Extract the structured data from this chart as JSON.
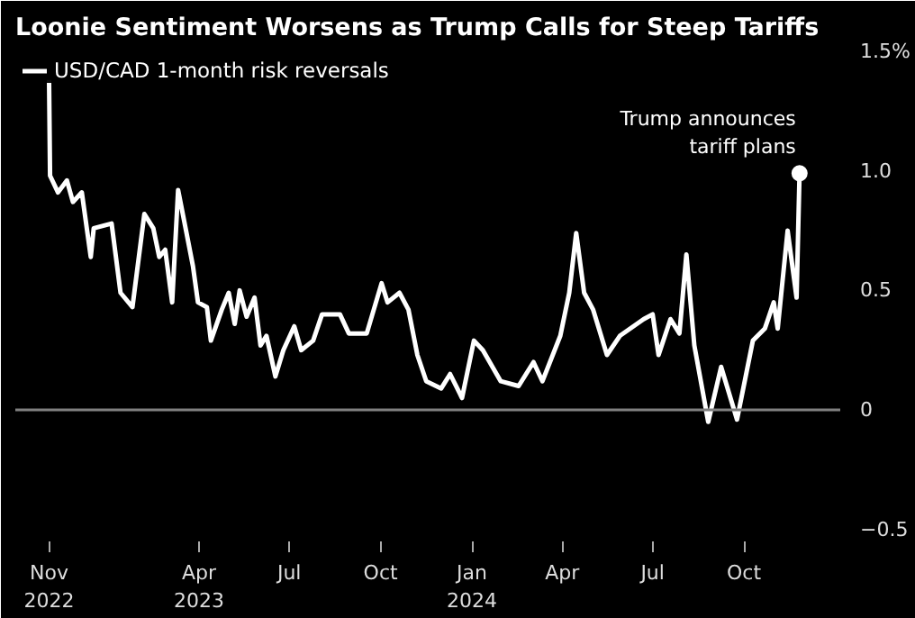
{
  "chart_data": {
    "type": "line",
    "title": "Loonie Sentiment Worsens as Trump Calls for Steep Tariffs",
    "x": [
      "2022-11-01",
      "2022-11-02",
      "2022-11-10",
      "2022-11-19",
      "2022-11-25",
      "2022-12-04",
      "2022-12-07",
      "2022-12-13",
      "2022-12-16",
      "2023-01-03",
      "2023-01-12",
      "2023-01-24",
      "2023-02-05",
      "2023-02-14",
      "2023-02-20",
      "2023-02-26",
      "2023-03-05",
      "2023-03-11",
      "2023-03-19",
      "2023-03-26",
      "2023-03-31",
      "2023-04-09",
      "2023-04-13",
      "2023-04-24",
      "2023-05-01",
      "2023-05-07",
      "2023-05-12",
      "2023-05-19",
      "2023-05-27",
      "2023-06-02",
      "2023-06-08",
      "2023-06-17",
      "2023-06-25",
      "2023-07-06",
      "2023-07-13",
      "2023-07-25",
      "2023-08-03",
      "2023-08-21",
      "2023-08-30",
      "2023-09-17",
      "2023-10-02",
      "2023-10-08",
      "2023-10-20",
      "2023-10-29",
      "2023-11-07",
      "2023-11-16",
      "2023-12-01",
      "2023-12-10",
      "2023-12-22",
      "2024-01-03",
      "2024-01-12",
      "2024-01-30",
      "2024-02-17",
      "2024-03-03",
      "2024-03-12",
      "2024-03-30",
      "2024-04-08",
      "2024-04-15",
      "2024-04-23",
      "2024-05-02",
      "2024-05-16",
      "2024-05-29",
      "2024-06-22",
      "2024-07-01",
      "2024-07-07",
      "2024-07-19",
      "2024-07-28",
      "2024-08-04",
      "2024-08-12",
      "2024-08-26",
      "2024-09-08",
      "2024-09-24",
      "2024-10-10",
      "2024-10-22",
      "2024-10-31",
      "2024-11-04",
      "2024-11-14",
      "2024-11-23",
      "2024-11-26"
    ],
    "series": [
      {
        "name": "USD/CAD 1-month risk reversals",
        "color": "#ffffff",
        "values": [
          1.38,
          0.98,
          0.91,
          0.96,
          0.87,
          0.91,
          0.82,
          0.64,
          0.76,
          0.78,
          0.49,
          0.43,
          0.82,
          0.76,
          0.64,
          0.67,
          0.45,
          0.92,
          0.75,
          0.6,
          0.45,
          0.43,
          0.29,
          0.42,
          0.49,
          0.36,
          0.5,
          0.39,
          0.47,
          0.27,
          0.31,
          0.14,
          0.25,
          0.35,
          0.25,
          0.29,
          0.4,
          0.4,
          0.32,
          0.32,
          0.53,
          0.45,
          0.49,
          0.42,
          0.23,
          0.12,
          0.09,
          0.15,
          0.05,
          0.29,
          0.25,
          0.12,
          0.1,
          0.2,
          0.12,
          0.31,
          0.49,
          0.74,
          0.49,
          0.42,
          0.23,
          0.31,
          0.38,
          0.4,
          0.23,
          0.38,
          0.32,
          0.65,
          0.27,
          -0.05,
          0.18,
          -0.04,
          0.29,
          0.34,
          0.45,
          0.34,
          0.75,
          0.47,
          0.99
        ]
      }
    ],
    "xlim": [
      "2022-09-28",
      "2025-01-06"
    ],
    "xticks": [
      {
        "value": "2022-11-01",
        "label": "Nov\n2022"
      },
      {
        "value": "2023-04-01",
        "label": "Apr\n2023"
      },
      {
        "value": "2023-07-01",
        "label": "Jul"
      },
      {
        "value": "2023-10-01",
        "label": "Oct"
      },
      {
        "value": "2024-01-01",
        "label": "Jan\n2024"
      },
      {
        "value": "2024-04-01",
        "label": "Apr"
      },
      {
        "value": "2024-07-01",
        "label": "Jul"
      },
      {
        "value": "2024-10-01",
        "label": "Oct"
      }
    ],
    "ylim": [
      -0.55,
      1.5
    ],
    "yticks": [
      -0.5,
      0,
      0.5,
      {
        "value": 1.0,
        "label": "1.0"
      },
      {
        "value": 1.5,
        "label": "1.5%"
      }
    ],
    "ref_lines": [
      {
        "axis": "y",
        "value": 0,
        "color": "#808080"
      }
    ],
    "annotations": [
      {
        "text": "Trump announces\ntariff plans",
        "x": "2024-11-26",
        "y": 0.99
      }
    ],
    "legend": "top left",
    "grid": false
  }
}
